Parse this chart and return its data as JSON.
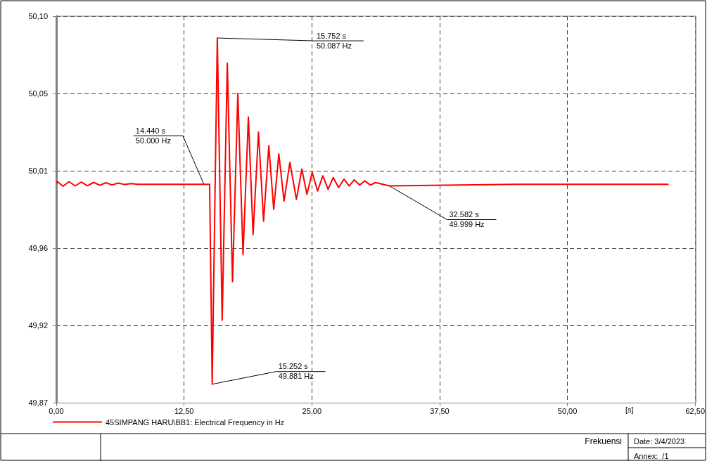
{
  "chart_data": {
    "type": "line",
    "xlabel": "[s]",
    "x": [
      0,
      0.1,
      0.65,
      1.25,
      1.85,
      2.45,
      3.05,
      3.65,
      4.25,
      4.85,
      5.45,
      6.05,
      6.7,
      7.3,
      8,
      14.44,
      15.0,
      15.252,
      15.752,
      16.23,
      16.73,
      17.24,
      17.76,
      18.27,
      18.79,
      19.25,
      19.78,
      20.28,
      20.79,
      21.27,
      21.77,
      22.28,
      22.85,
      23.49,
      24.02,
      24.52,
      25.03,
      25.56,
      26.08,
      26.59,
      27.09,
      27.62,
      28.14,
      28.65,
      29.15,
      29.68,
      30.18,
      30.73,
      31.22,
      32.582,
      45,
      59.9
    ],
    "series": [
      {
        "name": "45SIMPANG HARU\\BB1: Electrical Frequency in Hz",
        "color": "#ff0000",
        "values": [
          50.0005,
          50.0016,
          49.9988,
          50.0015,
          49.999,
          50.0013,
          49.9991,
          50.0011,
          49.9994,
          50.0009,
          49.9996,
          50.0007,
          49.9998,
          50.0004,
          50.0,
          50.0,
          50.0,
          49.881,
          50.087,
          49.919,
          50.072,
          49.942,
          50.054,
          49.958,
          50.04,
          49.97,
          50.031,
          49.978,
          50.023,
          49.985,
          50.018,
          49.99,
          50.013,
          49.991,
          50.009,
          49.994,
          50.007,
          49.996,
          50.005,
          49.997,
          50.004,
          49.998,
          50.003,
          49.999,
          50.0026,
          49.9995,
          50.002,
          49.9995,
          50.001,
          49.999,
          50.0,
          50.0
        ]
      }
    ],
    "xlim": [
      0,
      62.5
    ],
    "xticks": [
      {
        "value": 0,
        "label": "0,00"
      },
      {
        "value": 12.5,
        "label": "12,50"
      },
      {
        "value": 25,
        "label": "25,00"
      },
      {
        "value": 37.5,
        "label": "37,50"
      },
      {
        "value": 50,
        "label": "50,00"
      },
      {
        "value": 62.5,
        "label": "62,50"
      }
    ],
    "ylim": [
      49.87,
      50.1
    ],
    "yticks": [
      {
        "value": 49.87,
        "label": "49,87"
      },
      {
        "value": 49.916,
        "label": "49,92"
      },
      {
        "value": 49.962,
        "label": "49,96"
      },
      {
        "value": 50.008,
        "label": "50,01"
      },
      {
        "value": 50.054,
        "label": "50,05"
      },
      {
        "value": 50.1,
        "label": "50,10"
      }
    ],
    "grid": true,
    "legend": "bottom left",
    "annotations": [
      {
        "text": "15.752 s\n50.087 Hz",
        "x": 15.752,
        "y": 50.087
      },
      {
        "text": "14.440 s\n50.000 Hz",
        "x": 14.44,
        "y": 50.0
      },
      {
        "text": "15.252 s\n49.881 Hz",
        "x": 15.252,
        "y": 49.881
      },
      {
        "text": "32.582 s\n49.999 Hz",
        "x": 32.582,
        "y": 49.999
      },
      "Frekuensi",
      "Date: 3/4/2023",
      "Annex:  /1"
    ]
  }
}
